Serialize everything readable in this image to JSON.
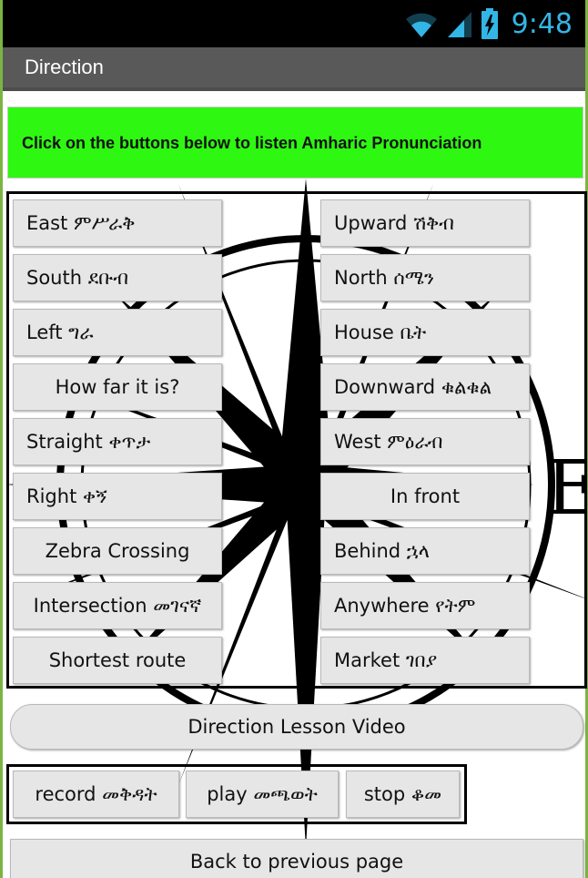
{
  "status_bar": {
    "time": "9:48",
    "icons": [
      "wifi-icon",
      "signal-icon",
      "battery-icon"
    ],
    "accent_color": "#33b5e5"
  },
  "app": {
    "title": "Direction"
  },
  "instruction": {
    "text": "Click on the buttons below to listen Amharic Pronunciation",
    "background": "#2ef811"
  },
  "compass": {
    "visible_letter": "E"
  },
  "left_buttons": [
    {
      "label": "East ምሥራቅ",
      "align": "left"
    },
    {
      "label": "South ደቡብ",
      "align": "left"
    },
    {
      "label": "Left ግራ",
      "align": "left"
    },
    {
      "label": "How far it is?",
      "align": "center"
    },
    {
      "label": "Straight ቀጥታ",
      "align": "left"
    },
    {
      "label": "Right ቀኝ",
      "align": "left"
    },
    {
      "label": "Zebra Crossing",
      "align": "center"
    },
    {
      "label": "Intersection መገናኛ",
      "align": "center"
    },
    {
      "label": "Shortest route",
      "align": "center"
    }
  ],
  "right_buttons": [
    {
      "label": "Upward ሽቅብ",
      "align": "left"
    },
    {
      "label": "North ሰሜን",
      "align": "left"
    },
    {
      "label": "House ቤት",
      "align": "left"
    },
    {
      "label": "Downward ቁልቁል",
      "align": "left"
    },
    {
      "label": "West ምዕራብ",
      "align": "left"
    },
    {
      "label": "In front",
      "align": "center"
    },
    {
      "label": "Behind ኋላ",
      "align": "left"
    },
    {
      "label": "Anywhere የትም",
      "align": "left"
    },
    {
      "label": "Market ገበያ",
      "align": "left"
    }
  ],
  "lesson_video_button": "Direction Lesson Video",
  "audio_controls": {
    "record": "record መቅዳት",
    "play": "play መጫወት",
    "stop": "stop ቆመ"
  },
  "back_button": "Back to previous page"
}
